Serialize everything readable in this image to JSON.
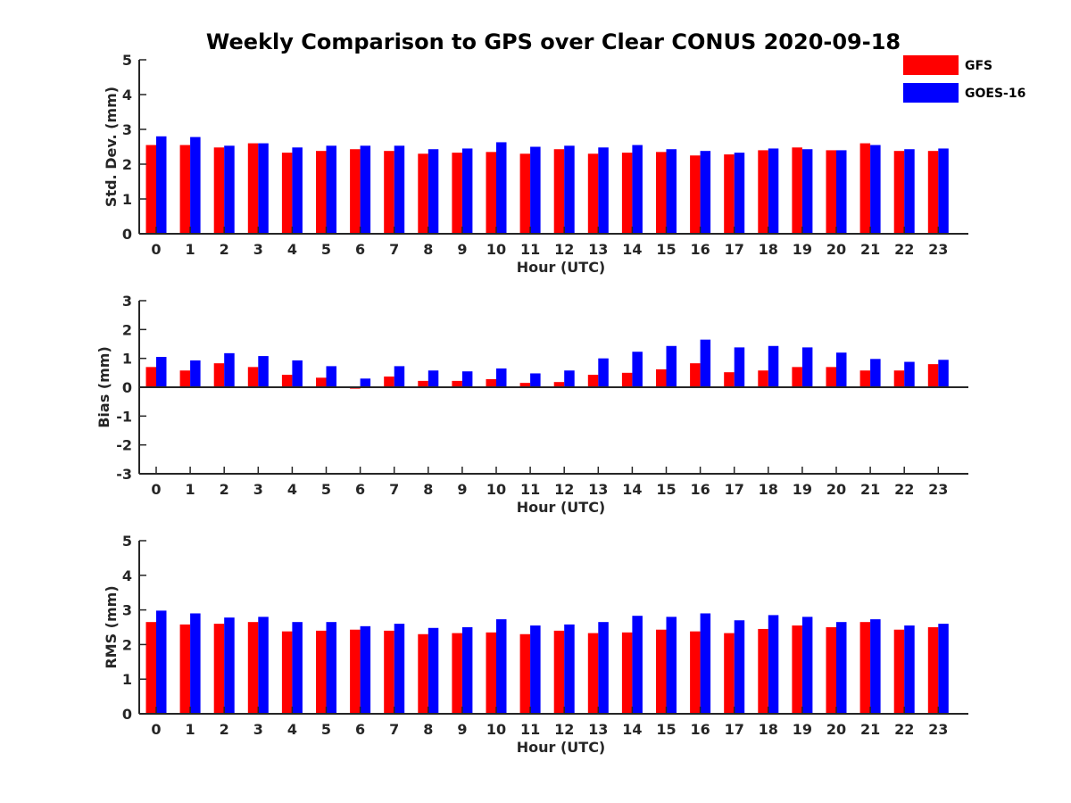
{
  "figure_title": "Weekly Comparison to GPS over Clear CONUS 2020-09-18",
  "legend": [
    {
      "name": "GFS",
      "color": "#ff0000"
    },
    {
      "name": "GOES-16",
      "color": "#0000ff"
    }
  ],
  "chart_data": [
    {
      "type": "bar",
      "title": "Weekly Comparison to GPS over Clear CONUS 2020-09-18",
      "xlabel": "Hour (UTC)",
      "ylabel": "Std. Dev. (mm)",
      "ylim": [
        0,
        5
      ],
      "yticks": [
        0,
        1,
        2,
        3,
        4,
        5
      ],
      "categories": [
        "0",
        "1",
        "2",
        "3",
        "4",
        "5",
        "6",
        "7",
        "8",
        "9",
        "10",
        "11",
        "12",
        "13",
        "14",
        "15",
        "16",
        "17",
        "18",
        "19",
        "20",
        "21",
        "22",
        "23"
      ],
      "series": [
        {
          "name": "GFS",
          "color": "#ff0000",
          "values": [
            2.55,
            2.55,
            2.48,
            2.6,
            2.33,
            2.38,
            2.43,
            2.38,
            2.3,
            2.33,
            2.35,
            2.3,
            2.43,
            2.3,
            2.33,
            2.35,
            2.25,
            2.28,
            2.4,
            2.48,
            2.4,
            2.6,
            2.38,
            2.38
          ]
        },
        {
          "name": "GOES-16",
          "color": "#0000ff",
          "values": [
            2.8,
            2.78,
            2.53,
            2.6,
            2.48,
            2.53,
            2.53,
            2.53,
            2.43,
            2.45,
            2.63,
            2.5,
            2.53,
            2.48,
            2.55,
            2.43,
            2.38,
            2.33,
            2.45,
            2.43,
            2.4,
            2.55,
            2.43,
            2.45
          ]
        }
      ]
    },
    {
      "type": "bar",
      "xlabel": "Hour (UTC)",
      "ylabel": "Bias (mm)",
      "ylim": [
        -3,
        3
      ],
      "yticks": [
        -3,
        -2,
        -1,
        0,
        1,
        2,
        3
      ],
      "categories": [
        "0",
        "1",
        "2",
        "3",
        "4",
        "5",
        "6",
        "7",
        "8",
        "9",
        "10",
        "11",
        "12",
        "13",
        "14",
        "15",
        "16",
        "17",
        "18",
        "19",
        "20",
        "21",
        "22",
        "23"
      ],
      "series": [
        {
          "name": "GFS",
          "color": "#ff0000",
          "values": [
            0.7,
            0.58,
            0.83,
            0.7,
            0.43,
            0.33,
            -0.05,
            0.37,
            0.22,
            0.22,
            0.28,
            0.15,
            0.18,
            0.43,
            0.5,
            0.62,
            0.83,
            0.52,
            0.58,
            0.7,
            0.7,
            0.58,
            0.58,
            0.8
          ]
        },
        {
          "name": "GOES-16",
          "color": "#0000ff",
          "values": [
            1.05,
            0.93,
            1.18,
            1.08,
            0.93,
            0.73,
            0.3,
            0.73,
            0.58,
            0.55,
            0.65,
            0.48,
            0.58,
            1.0,
            1.23,
            1.43,
            1.65,
            1.38,
            1.43,
            1.38,
            1.2,
            0.98,
            0.88,
            0.95
          ]
        }
      ]
    },
    {
      "type": "bar",
      "xlabel": "Hour (UTC)",
      "ylabel": "RMS (mm)",
      "ylim": [
        0,
        5
      ],
      "yticks": [
        0,
        1,
        2,
        3,
        4,
        5
      ],
      "categories": [
        "0",
        "1",
        "2",
        "3",
        "4",
        "5",
        "6",
        "7",
        "8",
        "9",
        "10",
        "11",
        "12",
        "13",
        "14",
        "15",
        "16",
        "17",
        "18",
        "19",
        "20",
        "21",
        "22",
        "23"
      ],
      "series": [
        {
          "name": "GFS",
          "color": "#ff0000",
          "values": [
            2.65,
            2.58,
            2.6,
            2.65,
            2.38,
            2.4,
            2.43,
            2.4,
            2.3,
            2.33,
            2.35,
            2.3,
            2.4,
            2.33,
            2.35,
            2.43,
            2.38,
            2.33,
            2.45,
            2.55,
            2.5,
            2.65,
            2.43,
            2.5
          ]
        },
        {
          "name": "GOES-16",
          "color": "#0000ff",
          "values": [
            2.98,
            2.9,
            2.78,
            2.8,
            2.65,
            2.65,
            2.53,
            2.6,
            2.48,
            2.5,
            2.73,
            2.55,
            2.58,
            2.65,
            2.83,
            2.8,
            2.9,
            2.7,
            2.85,
            2.8,
            2.65,
            2.73,
            2.55,
            2.6
          ]
        }
      ]
    }
  ]
}
